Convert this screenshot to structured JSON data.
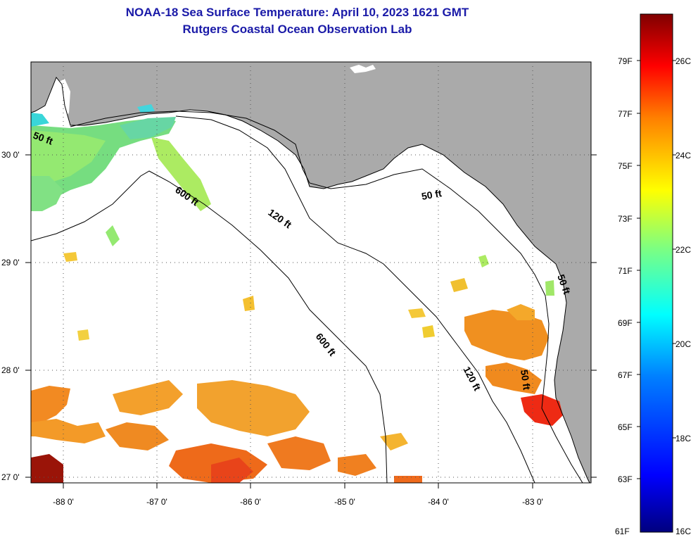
{
  "title": {
    "line1": "NOAA-18 Sea Surface Temperature:  April 10, 2023 1621 GMT",
    "line2": "Rutgers Coastal Ocean Observation Lab"
  },
  "axes": {
    "lon_labels": [
      "-88 0'",
      "-87 0'",
      "-86 0'",
      "-85 0'",
      "-84 0'",
      "-83 0'"
    ],
    "lat_labels": [
      "30 0'",
      "29 0'",
      "28 0'",
      "27 0'"
    ]
  },
  "contours": {
    "c50a": "50 ft",
    "c600a": "600 ft",
    "c120a": "120 ft",
    "c50b": "50 ft",
    "c600b": "600 ft",
    "c120b": "120 ft",
    "c50c": "50 ft",
    "c50d": "50 ft"
  },
  "colorbar": {
    "f_labels": [
      "79F",
      "77F",
      "75F",
      "73F",
      "71F",
      "69F",
      "67F",
      "65F",
      "63F",
      "61F"
    ],
    "c_labels": [
      "26C",
      "24C",
      "22C",
      "20C",
      "18C",
      "16C"
    ],
    "colors": [
      "#00007f",
      "#0000ff",
      "#007fff",
      "#00ffff",
      "#7fff7f",
      "#ffff00",
      "#ff7f00",
      "#ff0000",
      "#7f0000"
    ]
  },
  "colors": {
    "land": "#aaaaaa",
    "title": "#1a1aa8"
  }
}
